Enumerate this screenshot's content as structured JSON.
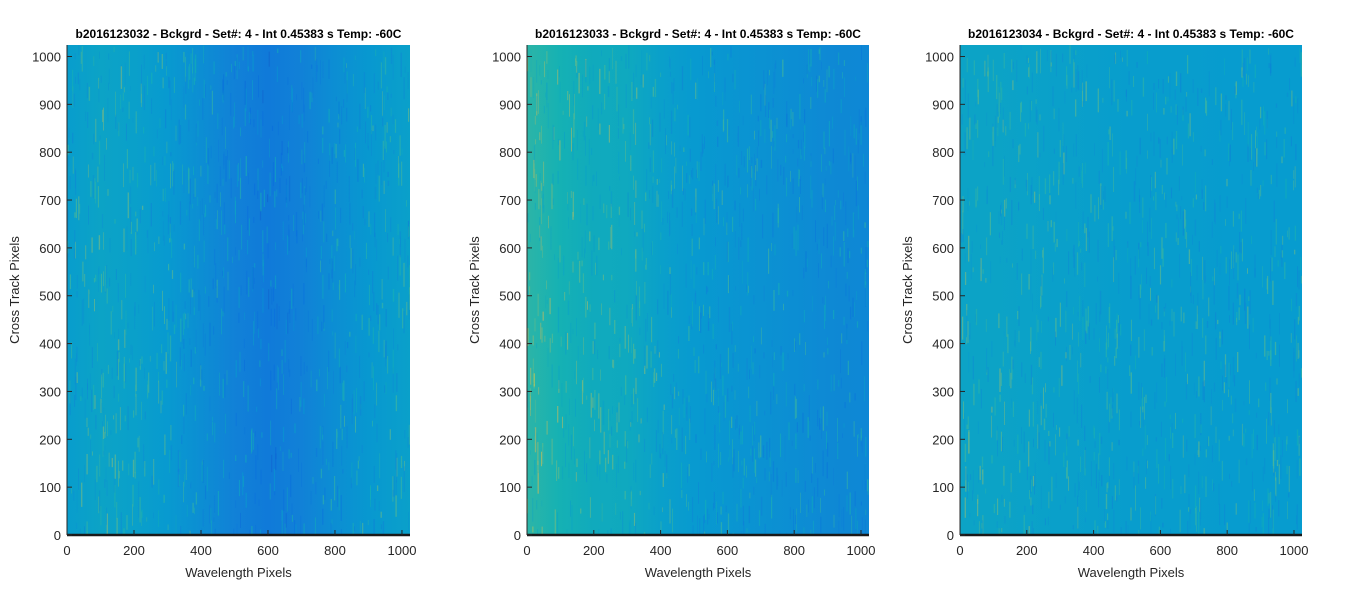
{
  "chart_data": [
    {
      "type": "heatmap",
      "title": "b2016123032 - Bckgrd - Set#: 4 - Int 0.45383 s Temp: -60C",
      "xlabel": "Wavelength Pixels",
      "ylabel": "Cross Track Pixels",
      "xlim": [
        0,
        1024
      ],
      "ylim": [
        0,
        1024
      ],
      "xticks": [
        0,
        200,
        400,
        600,
        800,
        1000
      ],
      "yticks": [
        0,
        100,
        200,
        300,
        400,
        500,
        600,
        700,
        800,
        900,
        1000
      ],
      "colormap": "parula",
      "column_profile": {
        "x": [
          0,
          100,
          200,
          300,
          400,
          500,
          600,
          700,
          800,
          900,
          1024
        ],
        "level": [
          0.46,
          0.5,
          0.48,
          0.44,
          0.38,
          0.32,
          0.28,
          0.32,
          0.38,
          0.43,
          0.48
        ]
      }
    },
    {
      "type": "heatmap",
      "title": "b2016123033 - Bckgrd - Set#: 4 - Int 0.45383 s Temp: -60C",
      "xlabel": "Wavelength Pixels",
      "ylabel": "Cross Track Pixels",
      "xlim": [
        0,
        1024
      ],
      "ylim": [
        0,
        1024
      ],
      "xticks": [
        0,
        200,
        400,
        600,
        800,
        1000
      ],
      "yticks": [
        0,
        100,
        200,
        300,
        400,
        500,
        600,
        700,
        800,
        900,
        1000
      ],
      "colormap": "parula",
      "column_profile": {
        "x": [
          0,
          100,
          200,
          300,
          400,
          500,
          600,
          700,
          800,
          900,
          1024
        ],
        "level": [
          0.64,
          0.6,
          0.55,
          0.54,
          0.48,
          0.44,
          0.42,
          0.4,
          0.38,
          0.36,
          0.35
        ]
      }
    },
    {
      "type": "heatmap",
      "title": "b2016123034 - Bckgrd - Set#: 4 - Int 0.45383 s Temp: -60C",
      "xlabel": "Wavelength Pixels",
      "ylabel": "Cross Track Pixels",
      "xlim": [
        0,
        1024
      ],
      "ylim": [
        0,
        1024
      ],
      "xticks": [
        0,
        200,
        400,
        600,
        800,
        1000
      ],
      "yticks": [
        0,
        100,
        200,
        300,
        400,
        500,
        600,
        700,
        800,
        900,
        1000
      ],
      "colormap": "parula",
      "column_profile": {
        "x": [
          0,
          100,
          200,
          300,
          400,
          500,
          600,
          700,
          800,
          900,
          1024
        ],
        "level": [
          0.5,
          0.5,
          0.49,
          0.48,
          0.47,
          0.46,
          0.46,
          0.46,
          0.45,
          0.45,
          0.45
        ]
      }
    }
  ]
}
